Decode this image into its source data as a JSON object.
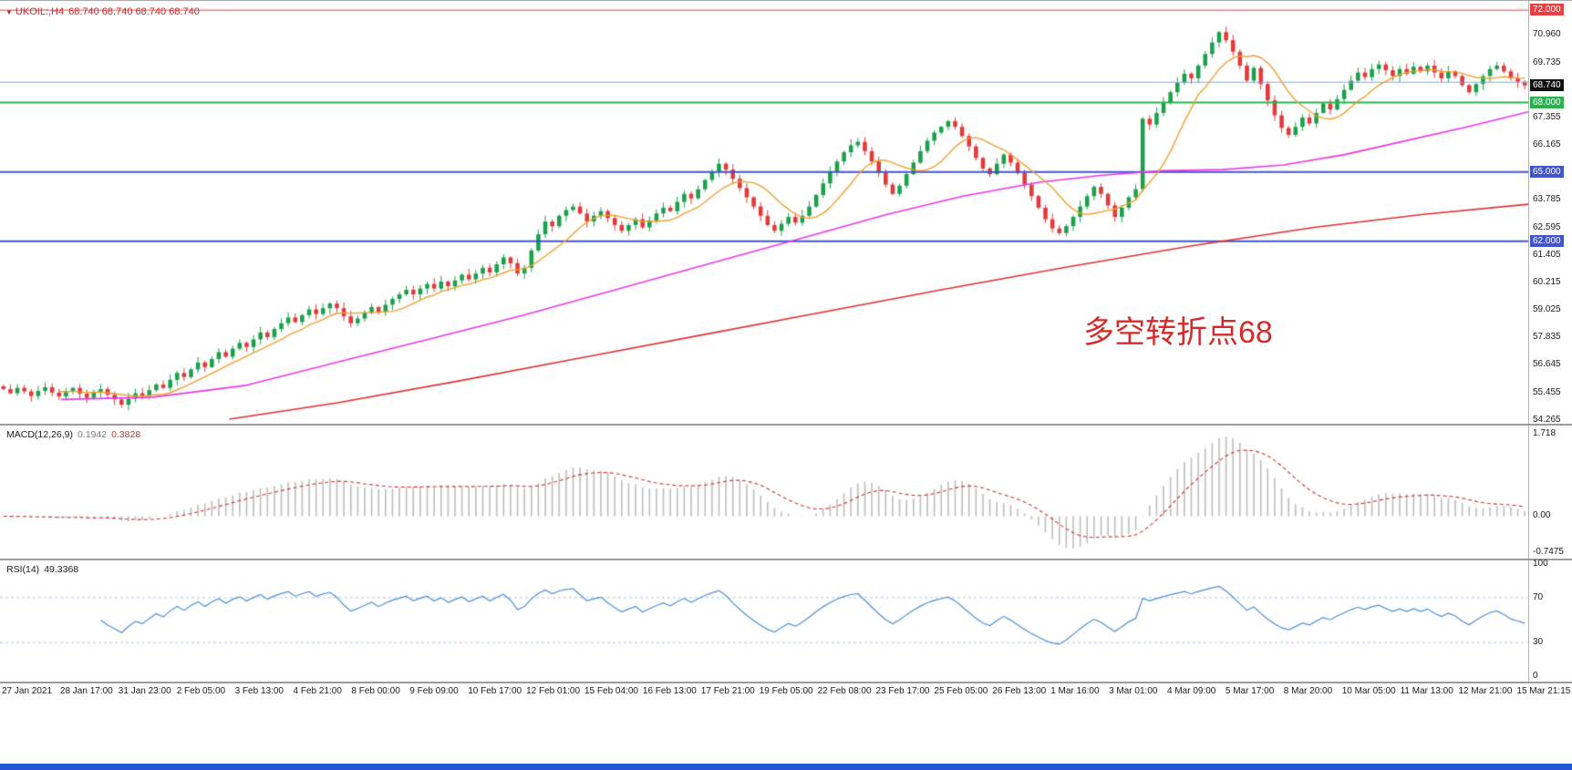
{
  "header": {
    "marker": "▼",
    "symbol_period": "UKOIL:,H4",
    "ohlc": "68.740 68.740 68.740 68.740",
    "color": "#cc2929"
  },
  "footer": {
    "bar_color": "#2356d6"
  },
  "chart_data": {
    "type": "candlestick",
    "symbol": "UKOIL",
    "timeframe": "H4",
    "last_price": 68.74,
    "ylim": [
      54.1,
      72.4
    ],
    "up_color": "#1ca04c",
    "down_color": "#e33a3a",
    "x_labels": [
      "27 Jan 2021",
      "28 Jan 17:00",
      "31 Jan 23:00",
      "2 Feb 05:00",
      "3 Feb 13:00",
      "4 Feb 21:00",
      "8 Feb 00:00",
      "9 Feb 09:00",
      "10 Feb 17:00",
      "12 Feb 01:00",
      "15 Feb 04:00",
      "16 Feb 13:00",
      "17 Feb 21:00",
      "19 Feb 05:00",
      "22 Feb 08:00",
      "23 Feb 17:00",
      "25 Feb 05:00",
      "26 Feb 13:00",
      "1 Mar 16:00",
      "3 Mar 01:00",
      "4 Mar 09:00",
      "5 Mar 17:00",
      "8 Mar 20:00",
      "10 Mar 05:00",
      "11 Mar 13:00",
      "12 Mar 21:00",
      "15 Mar 21:15"
    ],
    "closes": [
      55.6,
      55.42,
      55.65,
      55.5,
      55.3,
      55.52,
      55.68,
      55.45,
      55.28,
      55.5,
      55.65,
      55.4,
      55.22,
      55.45,
      55.6,
      55.35,
      55.15,
      54.92,
      55.18,
      55.42,
      55.3,
      55.55,
      55.8,
      55.65,
      56.0,
      56.3,
      56.12,
      56.45,
      56.75,
      56.55,
      56.9,
      57.2,
      57.0,
      57.35,
      57.6,
      57.42,
      57.75,
      58.05,
      57.85,
      58.2,
      58.45,
      58.7,
      58.5,
      58.8,
      59.05,
      58.85,
      59.1,
      59.3,
      59.1,
      58.75,
      58.45,
      58.65,
      58.9,
      59.15,
      58.95,
      59.25,
      59.5,
      59.7,
      59.9,
      59.7,
      59.95,
      60.15,
      59.95,
      60.25,
      60.05,
      60.3,
      60.55,
      60.35,
      60.6,
      60.85,
      60.65,
      61.0,
      61.3,
      61.05,
      60.6,
      60.85,
      61.6,
      62.3,
      62.85,
      62.65,
      63.1,
      63.35,
      63.5,
      63.2,
      62.85,
      63.1,
      63.3,
      63.0,
      62.7,
      62.45,
      62.7,
      62.95,
      62.6,
      62.9,
      63.2,
      63.45,
      63.3,
      63.7,
      64.05,
      63.85,
      64.25,
      64.65,
      65.0,
      65.35,
      65.1,
      64.7,
      64.3,
      63.9,
      63.5,
      63.1,
      62.7,
      62.45,
      62.75,
      63.05,
      62.8,
      63.1,
      63.5,
      64.0,
      64.5,
      65.0,
      65.45,
      65.85,
      66.15,
      66.3,
      65.9,
      65.45,
      64.95,
      64.45,
      64.05,
      64.4,
      64.9,
      65.4,
      65.9,
      66.35,
      66.7,
      66.95,
      67.2,
      66.95,
      66.55,
      66.1,
      65.6,
      65.15,
      64.9,
      65.35,
      65.75,
      65.4,
      64.95,
      64.45,
      63.95,
      63.45,
      62.95,
      62.55,
      62.35,
      62.65,
      63.05,
      63.5,
      63.95,
      64.35,
      64.05,
      63.55,
      63.05,
      63.45,
      63.9,
      64.25,
      67.3,
      67.05,
      67.55,
      68.0,
      68.45,
      68.85,
      69.25,
      69.05,
      69.6,
      70.1,
      70.6,
      71.05,
      70.7,
      70.2,
      69.6,
      68.95,
      69.5,
      68.8,
      68.1,
      67.45,
      66.9,
      66.6,
      66.95,
      67.35,
      67.1,
      67.55,
      67.95,
      67.7,
      68.15,
      68.55,
      68.95,
      69.3,
      69.1,
      69.45,
      69.65,
      69.4,
      69.15,
      69.45,
      69.25,
      69.55,
      69.35,
      69.6,
      69.3,
      69.05,
      69.35,
      69.15,
      68.75,
      68.45,
      68.8,
      69.15,
      69.45,
      69.6,
      69.35,
      69.05,
      68.9,
      68.74
    ],
    "ohlc_note": "open = previous close; highs/lows are small estimated wicks around each body",
    "y_ticks": [
      {
        "v": 70.96,
        "t": "70.960"
      },
      {
        "v": 69.735,
        "t": "69.735"
      },
      {
        "v": 67.355,
        "t": "67.355"
      },
      {
        "v": 66.165,
        "t": "66.165"
      },
      {
        "v": 63.785,
        "t": "63.785"
      },
      {
        "v": 62.595,
        "t": "62.595"
      },
      {
        "v": 61.405,
        "t": "61.405"
      },
      {
        "v": 60.215,
        "t": "60.215"
      },
      {
        "v": 59.025,
        "t": "59.025"
      },
      {
        "v": 57.835,
        "t": "57.835"
      },
      {
        "v": 56.645,
        "t": "56.645"
      },
      {
        "v": 55.455,
        "t": "55.455"
      },
      {
        "v": 54.265,
        "t": "54.265"
      }
    ],
    "y_badges": [
      {
        "v": 72.0,
        "t": "72.000",
        "bg": "#e84040"
      },
      {
        "v": 68.74,
        "t": "68.740",
        "bg": "#111111"
      },
      {
        "v": 68.0,
        "t": "68.000",
        "bg": "#2ab14e"
      },
      {
        "v": 65.0,
        "t": "65.000",
        "bg": "#4056c8"
      },
      {
        "v": 62.0,
        "t": "62.000",
        "bg": "#4056c8"
      }
    ],
    "h_lines": [
      {
        "price": 72.0,
        "color": "#e84040",
        "width": 1
      },
      {
        "price": 68.88,
        "color": "#8aa6cc",
        "width": 1
      },
      {
        "price": 68.0,
        "color": "#2ab14e",
        "width": 2
      },
      {
        "price": 65.0,
        "color": "#4056c8",
        "width": 2
      },
      {
        "price": 62.0,
        "color": "#4056c8",
        "width": 2
      }
    ],
    "moving_averages": {
      "fast": {
        "type": "sma",
        "period": 9,
        "color": "#f0a030"
      },
      "medium": {
        "color": "#e838e8",
        "waypoints": [
          [
            0.04,
            55.15
          ],
          [
            0.1,
            55.25
          ],
          [
            0.16,
            55.75
          ],
          [
            0.22,
            56.75
          ],
          [
            0.28,
            57.75
          ],
          [
            0.34,
            58.75
          ],
          [
            0.4,
            59.85
          ],
          [
            0.46,
            60.95
          ],
          [
            0.52,
            62.05
          ],
          [
            0.58,
            63.15
          ],
          [
            0.63,
            63.95
          ],
          [
            0.68,
            64.55
          ],
          [
            0.72,
            64.85
          ],
          [
            0.76,
            65.05
          ],
          [
            0.8,
            65.1
          ],
          [
            0.84,
            65.3
          ],
          [
            0.88,
            65.75
          ],
          [
            0.92,
            66.35
          ],
          [
            0.96,
            66.95
          ],
          [
            1.0,
            67.6
          ]
        ]
      },
      "slow": {
        "color": "#e03030",
        "waypoints": [
          [
            0.15,
            54.3
          ],
          [
            0.22,
            55.0
          ],
          [
            0.3,
            55.95
          ],
          [
            0.38,
            56.95
          ],
          [
            0.46,
            57.95
          ],
          [
            0.54,
            58.95
          ],
          [
            0.62,
            59.95
          ],
          [
            0.7,
            60.9
          ],
          [
            0.78,
            61.8
          ],
          [
            0.86,
            62.6
          ],
          [
            0.93,
            63.15
          ],
          [
            1.0,
            63.6
          ]
        ]
      }
    },
    "annotation": {
      "text": "多空转折点68",
      "color": "#d42a2a",
      "x": 1188,
      "y": 336,
      "font_size": 34
    },
    "macd": {
      "label": "MACD(12,26,9)",
      "fast": 12,
      "slow": 26,
      "signal": 9,
      "value_main": "0.1942",
      "value_signal": "0.3828",
      "ylim": [
        -0.88,
        1.88
      ],
      "axis_labels": [
        {
          "v": 1.718,
          "t": "1.718"
        },
        {
          "v": 0,
          "t": "0.00"
        },
        {
          "v": -0.7475,
          "t": "-0.7475"
        }
      ],
      "hist_color": "#bcbcbc",
      "signal_color": "#cc3333"
    },
    "rsi": {
      "label": "RSI(14)",
      "period": 14,
      "value": "49.3368",
      "levels": [
        70,
        30
      ],
      "axis_labels": [
        {
          "v": 100,
          "t": "100"
        },
        {
          "v": 70,
          "t": "70"
        },
        {
          "v": 30,
          "t": "30"
        },
        {
          "v": 0,
          "t": "0"
        }
      ],
      "line_color": "#4a8fd4",
      "level_color": "#a9c3e2"
    }
  }
}
